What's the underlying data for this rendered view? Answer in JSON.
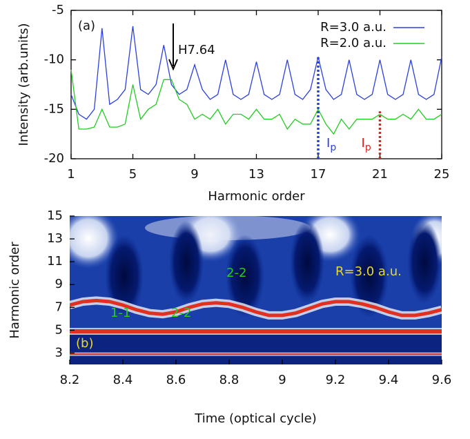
{
  "chart_data": [
    {
      "type": "line",
      "panel_label": "(a)",
      "xlabel": "Harmonic order",
      "ylabel": "Intensity (arb.units)",
      "xlim": [
        1,
        25
      ],
      "xticks": [
        1,
        5,
        9,
        13,
        17,
        21,
        25
      ],
      "ylim": [
        -20,
        -5
      ],
      "yticks": [
        -5,
        -10,
        -15,
        -20
      ],
      "legend": "top-right",
      "x": [
        1,
        1.5,
        2,
        2.5,
        3,
        3.5,
        4,
        4.5,
        5,
        5.5,
        6,
        6.5,
        7,
        7.5,
        8,
        8.5,
        9,
        9.5,
        10,
        10.5,
        11,
        11.5,
        12,
        12.5,
        13,
        13.5,
        14,
        14.5,
        15,
        15.5,
        16,
        16.5,
        17,
        17.5,
        18,
        18.5,
        19,
        19.5,
        20,
        20.5,
        21,
        21.5,
        22,
        22.5,
        23,
        23.5,
        24,
        24.5,
        25
      ],
      "series": [
        {
          "name": "R=3.0 a.u.",
          "color": "#2b3fe0",
          "values": [
            -13.5,
            -15.5,
            -16,
            -15,
            -6.8,
            -14.5,
            -14,
            -13,
            -6.6,
            -13,
            -13.5,
            -12.5,
            -8.5,
            -12.5,
            -13.5,
            -13,
            -10.5,
            -13,
            -14,
            -13.5,
            -10,
            -13.5,
            -14,
            -13.5,
            -10.2,
            -13.5,
            -14,
            -13.5,
            -10,
            -13.5,
            -14,
            -13,
            -9.7,
            -13,
            -14,
            -13.5,
            -10,
            -13.5,
            -14,
            -13.5,
            -10,
            -13.5,
            -14,
            -13.5,
            -10,
            -13.5,
            -14,
            -13.5,
            -9.7
          ]
        },
        {
          "name": "R=2.0 a.u.",
          "color": "#22cc22",
          "values": [
            -11,
            -17,
            -17,
            -16.8,
            -15,
            -16.8,
            -16.8,
            -16.5,
            -12.5,
            -16,
            -15,
            -14.5,
            -12,
            -12,
            -14,
            -14.5,
            -16,
            -15.5,
            -16,
            -15,
            -16.5,
            -15.5,
            -15.5,
            -16,
            -15,
            -16,
            -16,
            -15.5,
            -17,
            -16,
            -16.5,
            -16.5,
            -15,
            -16.5,
            -17.5,
            -16,
            -17,
            -16,
            -16,
            -16,
            -15.5,
            -16,
            -16,
            -15.5,
            -16,
            -15,
            -16,
            -16,
            -15.5
          ]
        }
      ],
      "arrow_label": "H7.64",
      "markers": [
        {
          "x": 17,
          "y": -9.7,
          "color": "#2b3fe0",
          "label": "I",
          "subscript": "p"
        },
        {
          "x": 21,
          "y": -15.2,
          "color": "#e02020",
          "label": "I",
          "subscript": "p"
        }
      ]
    },
    {
      "type": "heatmap",
      "panel_label": "(b)",
      "xlabel": "Time (optical cycle)",
      "ylabel": "Harmonic order",
      "xlim": [
        8.2,
        9.6
      ],
      "xticks": [
        8.2,
        8.4,
        8.6,
        8.8,
        9,
        9.2,
        9.4,
        9.6
      ],
      "ylim": [
        2,
        15
      ],
      "yticks": [
        3,
        5,
        7,
        9,
        11,
        13,
        15
      ],
      "ridge_color": "#e03020",
      "ridge": {
        "x": [
          8.2,
          8.25,
          8.3,
          8.35,
          8.4,
          8.45,
          8.5,
          8.55,
          8.6,
          8.65,
          8.7,
          8.75,
          8.8,
          8.85,
          8.9,
          8.95,
          9,
          9.05,
          9.1,
          9.15,
          9.2,
          9.25,
          9.3,
          9.35,
          9.4,
          9.45,
          9.5,
          9.55,
          9.6
        ],
        "y": [
          7.2,
          7.5,
          7.6,
          7.5,
          7.2,
          6.8,
          6.5,
          6.4,
          6.6,
          7.0,
          7.3,
          7.4,
          7.3,
          7.0,
          6.6,
          6.3,
          6.3,
          6.5,
          6.9,
          7.3,
          7.5,
          7.5,
          7.3,
          7.0,
          6.6,
          6.3,
          6.3,
          6.5,
          6.8
        ]
      },
      "hlines": [
        4.9,
        2.9
      ],
      "annotations": [
        {
          "text": "1-1",
          "color": "#22cc22"
        },
        {
          "text": "2-2",
          "color": "#22cc22"
        },
        {
          "text": "2-2",
          "color": "#22cc22"
        },
        {
          "text": "R=3.0 a.u.",
          "color": "#e8d830"
        }
      ]
    }
  ]
}
